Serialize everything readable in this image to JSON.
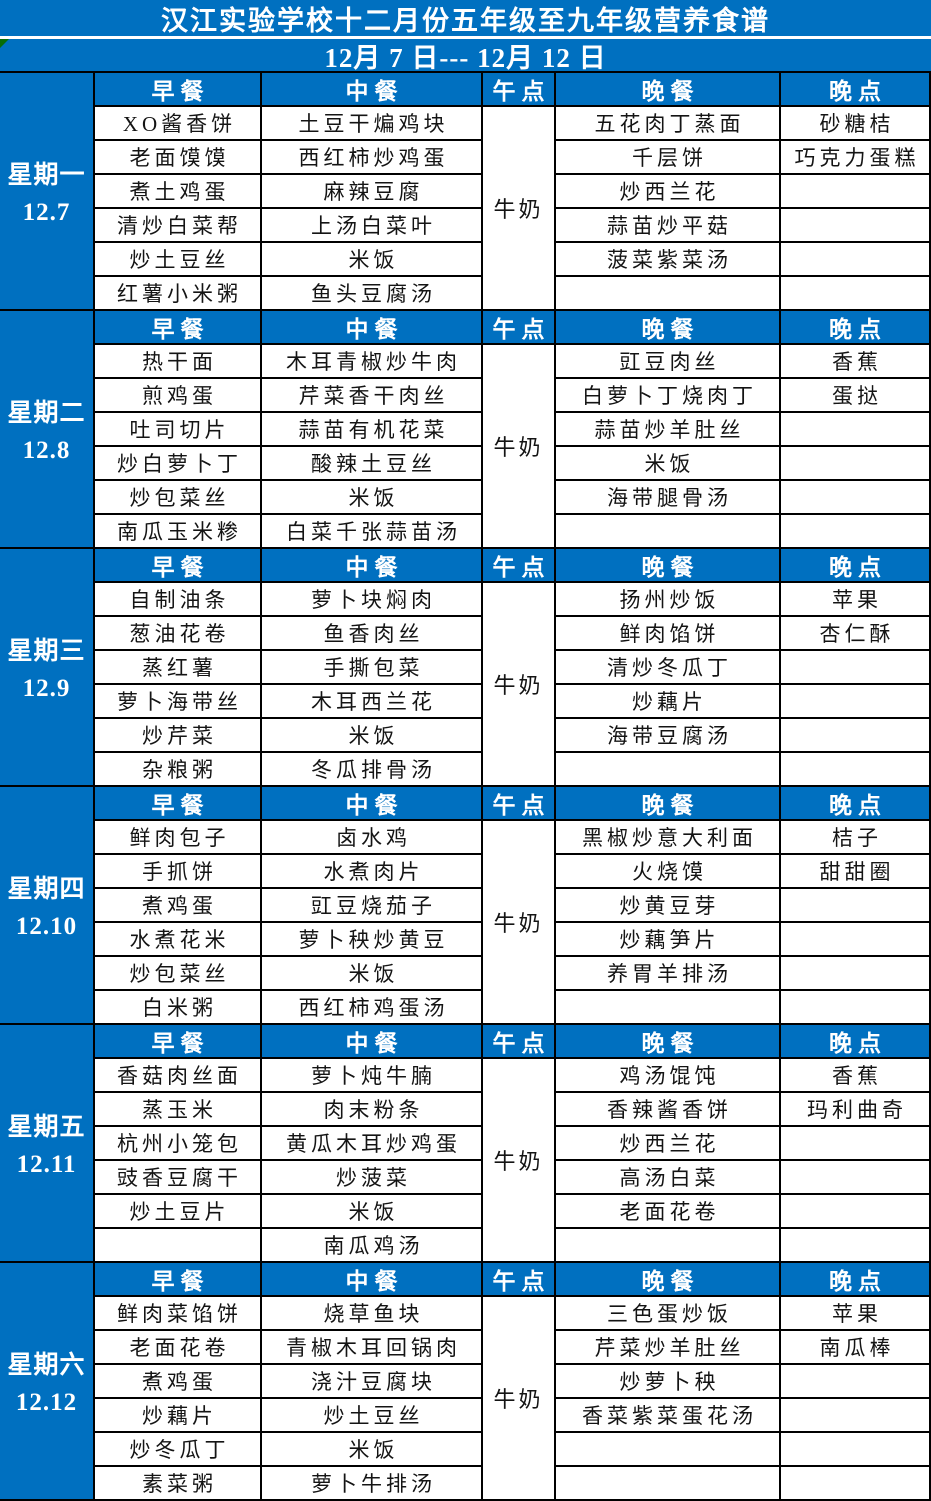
{
  "title": "汉江实验学校十二月份五年级至九年级营养食谱",
  "date_range": "12月 7 日--- 12月 12 日",
  "columns": [
    "早餐",
    "中餐",
    "午点",
    "晚餐",
    "晚点"
  ],
  "colors": {
    "accent_blue": "#0070C0",
    "border": "#000000",
    "comment_triangle_green": "#076d07"
  },
  "icons": {
    "corner_triangle": "excel-comment-triangle"
  },
  "days": [
    {
      "day": "星期一",
      "date": "12.7",
      "breakfast": [
        "XO酱香饼",
        "老面馍馍",
        "煮土鸡蛋",
        "清炒白菜帮",
        "炒土豆丝",
        "红薯小米粥"
      ],
      "lunch": [
        "土豆干煸鸡块",
        "西红柿炒鸡蛋",
        "麻辣豆腐",
        "上汤白菜叶",
        "米饭",
        "鱼头豆腐汤"
      ],
      "snack": "牛奶",
      "dinner": [
        "五花肉丁蒸面",
        "千层饼",
        "炒西兰花",
        "蒜苗炒平菇",
        "菠菜紫菜汤",
        ""
      ],
      "evening": [
        "砂糖桔",
        "巧克力蛋糕",
        "",
        "",
        "",
        ""
      ]
    },
    {
      "day": "星期二",
      "date": "12.8",
      "breakfast": [
        "热干面",
        "煎鸡蛋",
        "吐司切片",
        "炒白萝卜丁",
        "炒包菜丝",
        "南瓜玉米糁"
      ],
      "lunch": [
        "木耳青椒炒牛肉",
        "芹菜香干肉丝",
        "蒜苗有机花菜",
        "酸辣土豆丝",
        "米饭",
        "白菜千张蒜苗汤"
      ],
      "snack": "牛奶",
      "dinner": [
        "豇豆肉丝",
        "白萝卜丁烧肉丁",
        "蒜苗炒羊肚丝",
        "米饭",
        "海带腿骨汤",
        ""
      ],
      "evening": [
        "香蕉",
        "蛋挞",
        "",
        "",
        "",
        ""
      ]
    },
    {
      "day": "星期三",
      "date": "12.9",
      "breakfast": [
        "自制油条",
        "葱油花卷",
        "蒸红薯",
        "萝卜海带丝",
        "炒芹菜",
        "杂粮粥"
      ],
      "lunch": [
        "萝卜块焖肉",
        "鱼香肉丝",
        "手撕包菜",
        "木耳西兰花",
        "米饭",
        "冬瓜排骨汤"
      ],
      "snack": "牛奶",
      "dinner": [
        "扬州炒饭",
        "鲜肉馅饼",
        "清炒冬瓜丁",
        "炒藕片",
        "海带豆腐汤",
        ""
      ],
      "evening": [
        "苹果",
        "杏仁酥",
        "",
        "",
        "",
        ""
      ]
    },
    {
      "day": "星期四",
      "date": "12.10",
      "breakfast": [
        "鲜肉包子",
        "手抓饼",
        "煮鸡蛋",
        "水煮花米",
        "炒包菜丝",
        "白米粥"
      ],
      "lunch": [
        "卤水鸡",
        "水煮肉片",
        "豇豆烧茄子",
        "萝卜秧炒黄豆",
        "米饭",
        "西红柿鸡蛋汤"
      ],
      "snack": "牛奶",
      "dinner": [
        "黑椒炒意大利面",
        "火烧馍",
        "炒黄豆芽",
        "炒藕笋片",
        "养胃羊排汤",
        ""
      ],
      "evening": [
        "桔子",
        "甜甜圈",
        "",
        "",
        "",
        ""
      ]
    },
    {
      "day": "星期五",
      "date": "12.11",
      "breakfast": [
        "香菇肉丝面",
        "蒸玉米",
        "杭州小笼包",
        "豉香豆腐干",
        "炒土豆片",
        ""
      ],
      "lunch": [
        "萝卜炖牛腩",
        "肉末粉条",
        "黄瓜木耳炒鸡蛋",
        "炒菠菜",
        "米饭",
        "南瓜鸡汤"
      ],
      "snack": "牛奶",
      "dinner": [
        "鸡汤馄饨",
        "香辣酱香饼",
        "炒西兰花",
        "高汤白菜",
        "老面花卷",
        ""
      ],
      "evening": [
        "香蕉",
        "玛利曲奇",
        "",
        "",
        "",
        ""
      ]
    },
    {
      "day": "星期六",
      "date": "12.12",
      "breakfast": [
        "鲜肉菜馅饼",
        "老面花卷",
        "煮鸡蛋",
        "炒藕片",
        "炒冬瓜丁",
        "素菜粥"
      ],
      "lunch": [
        "烧草鱼块",
        "青椒木耳回锅肉",
        "浇汁豆腐块",
        "炒土豆丝",
        "米饭",
        "萝卜牛排汤"
      ],
      "snack": "牛奶",
      "dinner": [
        "三色蛋炒饭",
        "芹菜炒羊肚丝",
        "炒萝卜秧",
        "香菜紫菜蛋花汤",
        "",
        ""
      ],
      "evening": [
        "苹果",
        "南瓜棒",
        "",
        "",
        "",
        ""
      ]
    }
  ]
}
